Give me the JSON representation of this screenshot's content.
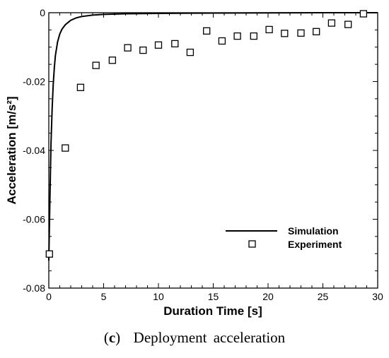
{
  "chart_data": {
    "type": "line",
    "xlabel": "Duration Time [s]",
    "ylabel": "Acceleration [m/s²]",
    "xlim": [
      0,
      30
    ],
    "ylim": [
      -0.08,
      0
    ],
    "xticks": [
      "0",
      "5",
      "10",
      "15",
      "20",
      "25",
      "30"
    ],
    "yticks": [
      "0",
      "-0.02",
      "-0.04",
      "-0.06",
      "-0.08"
    ],
    "legend_position": "lower-right",
    "grid": false,
    "series": [
      {
        "name": "Simulation",
        "style": "solid-line",
        "color": "#000000",
        "x": [
          0,
          0.1,
          0.2,
          0.3,
          0.4,
          0.5,
          0.6,
          0.8,
          1.0,
          1.2,
          1.5,
          2.0,
          2.5,
          3.0,
          4.0,
          5.0,
          7.0,
          10.0,
          15.0,
          20.0,
          25.0,
          30.0
        ],
        "y": [
          -0.072,
          -0.055,
          -0.038,
          -0.028,
          -0.021,
          -0.016,
          -0.0125,
          -0.0085,
          -0.0062,
          -0.0048,
          -0.0035,
          -0.0022,
          -0.0015,
          -0.0011,
          -0.0007,
          -0.0005,
          -0.0003,
          -0.0002,
          -0.0001,
          -5e-05,
          0,
          0
        ]
      },
      {
        "name": "Experiment",
        "style": "hollow-square-marker",
        "color": "#000000",
        "x": [
          0.05,
          1.5,
          2.9,
          4.3,
          5.8,
          7.2,
          8.6,
          10.0,
          11.5,
          12.9,
          14.4,
          15.8,
          17.2,
          18.7,
          20.1,
          21.5,
          23.0,
          24.4,
          25.8,
          27.3,
          28.7
        ],
        "y": [
          -0.0701,
          -0.0393,
          -0.0217,
          -0.0153,
          -0.0138,
          -0.0102,
          -0.0109,
          -0.0094,
          -0.009,
          -0.0115,
          -0.0053,
          -0.0082,
          -0.0068,
          -0.0068,
          -0.0049,
          -0.006,
          -0.0059,
          -0.0055,
          -0.003,
          -0.0034,
          -0.0003
        ]
      }
    ]
  },
  "caption": {
    "letter": "c",
    "text": "Deployment acceleration"
  }
}
